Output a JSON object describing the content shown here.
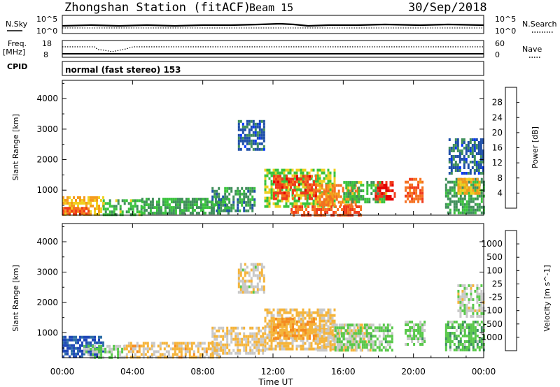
{
  "header": {
    "station": "Zhongshan Station (fitACF)",
    "beam": "Beam 15",
    "date": "30/Sep/2018"
  },
  "top_strips": {
    "nsky_label": "N.Sky",
    "nsky_ticks": [
      "10^5",
      "10^0"
    ],
    "nsearch_label": "N.Search",
    "nsearch_ticks": [
      "10^5",
      "10^0"
    ],
    "freq_label": "Freq.",
    "freq_unit": "[MHz]",
    "freq_ticks": [
      "18",
      "8"
    ],
    "nave_label": "Nave",
    "nave_ticks": [
      "60",
      "0"
    ],
    "cpid_label": "CPID",
    "cpid_text": "normal (fast stereo) 153"
  },
  "colors": {
    "power": [
      "#0033ff",
      "#1f4fa8",
      "#3f8f5a",
      "#39c33c",
      "#f0d020",
      "#f59b1a",
      "#f57020",
      "#f03a1a",
      "#e60000"
    ],
    "velocity": [
      "#2048b8",
      "#2f6fa8",
      "#3b8f5f",
      "#58c84a",
      "#c8c8c8",
      "#f5b43a",
      "#f58a20",
      "#f06020",
      "#e62010"
    ]
  },
  "chart_data": [
    {
      "type": "heatmap",
      "name": "power",
      "ylabel": "Slant Range [km]",
      "xlabel": "",
      "x_ticks": [
        "00:00",
        "04:00",
        "08:00",
        "12:00",
        "16:00",
        "20:00",
        "00:00"
      ],
      "y_ticks": [
        "1000",
        "2000",
        "3000",
        "4000"
      ],
      "ylim": [
        180,
        4600
      ],
      "xlim_hours": [
        0,
        24
      ],
      "colorbar_label": "Power [dB]",
      "colorbar_ticks": [
        "28",
        "24",
        "20",
        "16",
        "12",
        "8",
        "4"
      ],
      "colorbar_range": [
        0,
        32
      ],
      "regions": [
        {
          "t0": 0.0,
          "t1": 2.3,
          "r0": 200,
          "r1": 800,
          "v": 18
        },
        {
          "t0": 0.0,
          "t1": 1.5,
          "r0": 200,
          "r1": 450,
          "v": 26
        },
        {
          "t0": 2.3,
          "t1": 4.5,
          "r0": 200,
          "r1": 700,
          "v": 12
        },
        {
          "t0": 4.5,
          "t1": 9.5,
          "r0": 250,
          "r1": 750,
          "v": 10
        },
        {
          "t0": 8.5,
          "t1": 11.0,
          "r0": 350,
          "r1": 1100,
          "v": 9
        },
        {
          "t0": 10.0,
          "t1": 11.5,
          "r0": 2300,
          "r1": 3300,
          "v": 6
        },
        {
          "t0": 11.5,
          "t1": 15.5,
          "r0": 500,
          "r1": 1700,
          "v": 14
        },
        {
          "t0": 12.0,
          "t1": 14.5,
          "r0": 700,
          "r1": 1500,
          "v": 26
        },
        {
          "t0": 14.5,
          "t1": 16.8,
          "r0": 500,
          "r1": 1200,
          "v": 22
        },
        {
          "t0": 16.0,
          "t1": 18.5,
          "r0": 600,
          "r1": 1300,
          "v": 12
        },
        {
          "t0": 17.8,
          "t1": 18.9,
          "r0": 700,
          "r1": 1300,
          "v": 28
        },
        {
          "t0": 13.0,
          "t1": 17.0,
          "r0": 200,
          "r1": 500,
          "v": 25
        },
        {
          "t0": 19.5,
          "t1": 20.5,
          "r0": 600,
          "r1": 1400,
          "v": 24
        },
        {
          "t0": 21.8,
          "t1": 24.0,
          "r0": 300,
          "r1": 1400,
          "v": 10
        },
        {
          "t0": 22.5,
          "t1": 23.8,
          "r0": 900,
          "r1": 1400,
          "v": 18
        },
        {
          "t0": 22.0,
          "t1": 24.0,
          "r0": 1600,
          "r1": 2700,
          "v": 6
        }
      ]
    },
    {
      "type": "heatmap",
      "name": "velocity",
      "ylabel": "Slant Range [km]",
      "xlabel": "Time UT",
      "x_ticks": [
        "00:00",
        "04:00",
        "08:00",
        "12:00",
        "16:00",
        "20:00",
        "00:00"
      ],
      "y_ticks": [
        "1000",
        "2000",
        "3000",
        "4000"
      ],
      "ylim": [
        180,
        4600
      ],
      "xlim_hours": [
        0,
        24
      ],
      "colorbar_label": "Velocity [m s^-1]",
      "colorbar_ticks": [
        "1000",
        "500",
        "100",
        "25",
        "-25",
        "-100",
        "-500",
        "-1000"
      ],
      "colorbar_range": [
        -1200,
        1200
      ],
      "regions": [
        {
          "t0": 0.0,
          "t1": 2.3,
          "r0": 200,
          "r1": 900,
          "v": 1000
        },
        {
          "t0": 1.2,
          "t1": 3.5,
          "r0": 200,
          "r1": 600,
          "v": 150
        },
        {
          "t0": 3.5,
          "t1": 9.0,
          "r0": 200,
          "r1": 700,
          "v": -200
        },
        {
          "t0": 8.5,
          "t1": 11.5,
          "r0": 300,
          "r1": 1200,
          "v": -150
        },
        {
          "t0": 10.0,
          "t1": 11.5,
          "r0": 2300,
          "r1": 3300,
          "v": -60
        },
        {
          "t0": 11.5,
          "t1": 15.5,
          "r0": 500,
          "r1": 1800,
          "v": -180
        },
        {
          "t0": 12.0,
          "t1": 14.5,
          "r0": 800,
          "r1": 1500,
          "v": -350
        },
        {
          "t0": 14.5,
          "t1": 17.5,
          "r0": 400,
          "r1": 1300,
          "v": -120
        },
        {
          "t0": 15.5,
          "t1": 18.8,
          "r0": 400,
          "r1": 1300,
          "v": 200
        },
        {
          "t0": 19.5,
          "t1": 20.6,
          "r0": 600,
          "r1": 1400,
          "v": 200
        },
        {
          "t0": 21.8,
          "t1": 24.0,
          "r0": 400,
          "r1": 1400,
          "v": 300
        },
        {
          "t0": 22.5,
          "t1": 24.0,
          "r0": 1500,
          "r1": 2600,
          "v": 10
        }
      ]
    }
  ]
}
